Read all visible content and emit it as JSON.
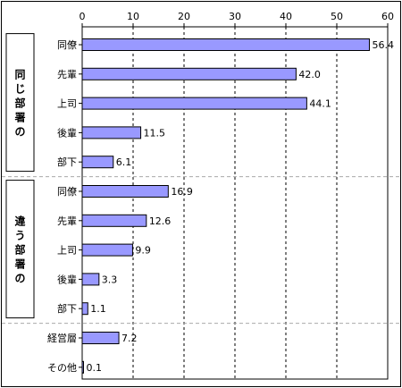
{
  "chart_data": {
    "type": "bar",
    "orientation": "horizontal",
    "xlim": [
      0,
      60
    ],
    "xticks": [
      0,
      10,
      20,
      30,
      40,
      50,
      60
    ],
    "grid": "vertical dashed",
    "bar_color": "#9999ff",
    "groups": [
      {
        "label": "同じ部署の",
        "categories": [
          "同僚",
          "先輩",
          "上司",
          "後輩",
          "部下"
        ],
        "values": [
          56.4,
          42.0,
          44.1,
          11.5,
          6.1
        ],
        "value_labels": [
          "56.4",
          "42.0",
          "44.1",
          "11.5",
          "6.1"
        ]
      },
      {
        "label": "違う部署の",
        "categories": [
          "同僚",
          "先輩",
          "上司",
          "後輩",
          "部下"
        ],
        "values": [
          16.9,
          12.6,
          9.9,
          3.3,
          1.1
        ],
        "value_labels": [
          "16.9",
          "12.6",
          "9.9",
          "3.3",
          "1.1"
        ]
      },
      {
        "label": "",
        "categories": [
          "経営層",
          "その他"
        ],
        "values": [
          7.2,
          0.1
        ],
        "value_labels": [
          "7.2",
          "0.1"
        ]
      }
    ]
  }
}
